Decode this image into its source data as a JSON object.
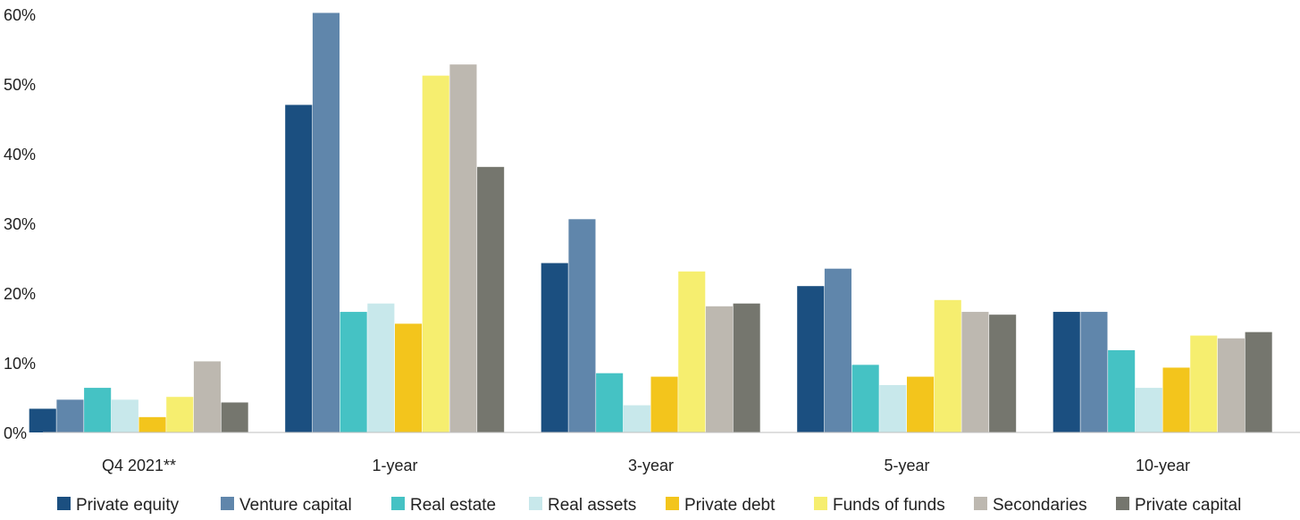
{
  "chart_data": {
    "type": "bar",
    "categories": [
      "Q4 2021**",
      "1-year",
      "3-year",
      "5-year",
      "10-year"
    ],
    "ylim": [
      0,
      60
    ],
    "yticks": [
      0,
      10,
      20,
      30,
      40,
      50,
      60
    ],
    "ytick_labels": [
      "0%",
      "10%",
      "20%",
      "30%",
      "40%",
      "50%",
      "60%"
    ],
    "grid": false,
    "legend_position": "bottom",
    "series": [
      {
        "name": "Private equity",
        "color": "#1b4f80",
        "values": [
          3.4,
          47.0,
          24.3,
          21.0,
          17.3
        ]
      },
      {
        "name": "Venture capital",
        "color": "#6086ab",
        "values": [
          4.7,
          60.2,
          30.6,
          23.5,
          17.3
        ]
      },
      {
        "name": "Real estate",
        "color": "#45c2c4",
        "values": [
          6.4,
          17.3,
          8.5,
          9.7,
          11.8
        ]
      },
      {
        "name": "Real assets",
        "color": "#c8e8eb",
        "values": [
          4.7,
          18.5,
          3.9,
          6.8,
          6.4
        ]
      },
      {
        "name": "Private debt",
        "color": "#f3c51c",
        "values": [
          2.2,
          15.6,
          8.0,
          8.0,
          9.3
        ]
      },
      {
        "name": "Funds of funds",
        "color": "#f6ee6f",
        "values": [
          5.1,
          51.2,
          23.1,
          19.0,
          13.9
        ]
      },
      {
        "name": "Secondaries",
        "color": "#bdb8b0",
        "values": [
          10.2,
          52.8,
          18.1,
          17.3,
          13.5
        ]
      },
      {
        "name": "Private capital",
        "color": "#75766e",
        "values": [
          4.3,
          38.1,
          18.5,
          16.9,
          14.4
        ]
      }
    ]
  }
}
